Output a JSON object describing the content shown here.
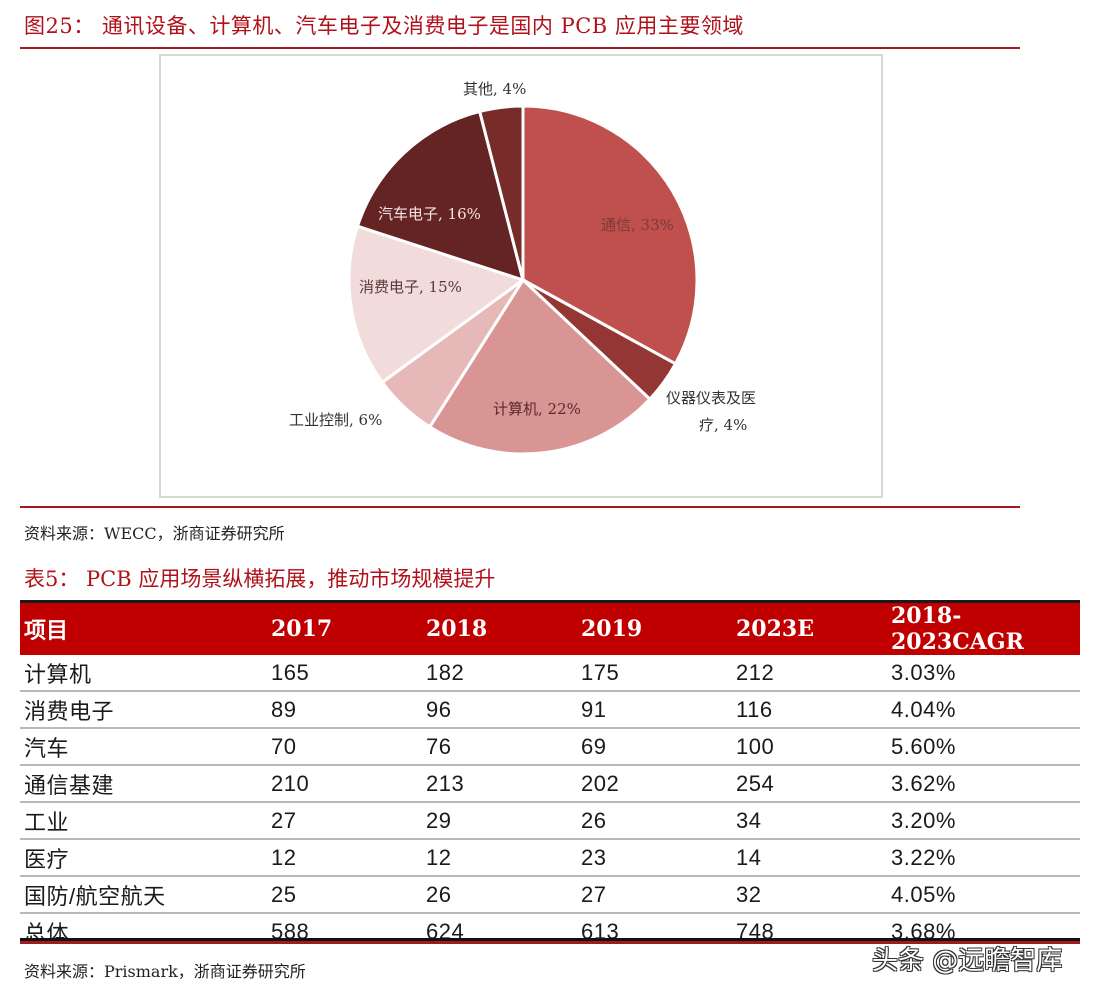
{
  "figure": {
    "title": "图25： 通讯设备、计算机、汽车电子及消费电子是国内 PCB 应用主要领域",
    "source": "资料来源：WECC，浙商证券研究所"
  },
  "chart_data": {
    "type": "pie",
    "title": "通讯设备、计算机、汽车电子及消费电子是国内 PCB 应用主要领域",
    "start_angle": "12 o'clock, clockwise",
    "slices": [
      {
        "label": "通信",
        "value": 33,
        "display": "通信, 33%",
        "color": "#c0504d"
      },
      {
        "label": "仪器仪表及医疗",
        "value": 4,
        "display": "仪器仪表及医疗, 4%",
        "color": "#943634"
      },
      {
        "label": "计算机",
        "value": 22,
        "display": "计算机, 22%",
        "color": "#d99594"
      },
      {
        "label": "工业控制",
        "value": 6,
        "display": "工业控制, 6%",
        "color": "#e6b9b8"
      },
      {
        "label": "消费电子",
        "value": 15,
        "display": "消费电子, 15%",
        "color": "#f2dcdb"
      },
      {
        "label": "汽车电子",
        "value": 16,
        "display": "汽车电子, 16%",
        "color": "#632423"
      },
      {
        "label": "其他",
        "value": 4,
        "display": "其他, 4%",
        "color": "#772c2a"
      }
    ],
    "legend": "none (data labels)"
  },
  "labels": {
    "tongxin": "通信, 33%",
    "yiqi_line1": "仪器仪表及医",
    "yiqi_line2": "疗, 4%",
    "jisuanji": "计算机, 22%",
    "gongye": "工业控制, 6%",
    "xiaofei": "消费电子, 15%",
    "qiche": "汽车电子, 16%",
    "qita": "其他, 4%"
  },
  "table": {
    "title": "表5： PCB 应用场景纵横拓展，推动市场规模提升",
    "headers": [
      "项目",
      "2017",
      "2018",
      "2019",
      "2023E",
      "2018-2023CAGR"
    ],
    "rows": [
      [
        "计算机",
        "165",
        "182",
        "175",
        "212",
        "3.03%"
      ],
      [
        "消费电子",
        "89",
        "96",
        "91",
        "116",
        "4.04%"
      ],
      [
        "汽车",
        "70",
        "76",
        "69",
        "100",
        "5.60%"
      ],
      [
        "通信基建",
        "210",
        "213",
        "202",
        "254",
        "3.62%"
      ],
      [
        "工业",
        "27",
        "29",
        "26",
        "34",
        "3.20%"
      ],
      [
        "医疗",
        "12",
        "12",
        "23",
        "14",
        "3.22%"
      ],
      [
        "国防/航空航天",
        "25",
        "26",
        "27",
        "32",
        "4.05%"
      ],
      [
        "总体",
        "588",
        "624",
        "613",
        "748",
        "3.68%"
      ]
    ],
    "source": "资料来源：Prismark，浙商证券研究所"
  },
  "watermark": "头条 @远瞻智库",
  "colors": {
    "accent_red": "#c00000",
    "title_red": "#b0121b",
    "rule_red": "#a11a1f"
  }
}
